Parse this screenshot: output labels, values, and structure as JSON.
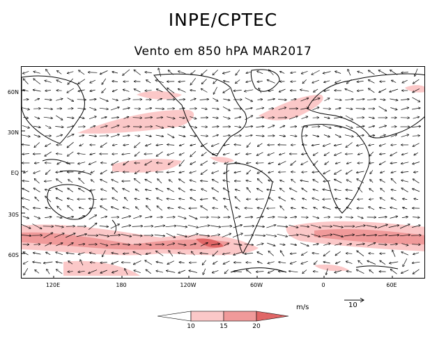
{
  "header": {
    "title": "INPE/CPTEC",
    "subtitle": "Vento em 850 hPA MAR2017"
  },
  "map": {
    "lat_labels": [
      "60N",
      "30N",
      "EQ",
      "30S",
      "60S"
    ],
    "lon_labels": [
      "120E",
      "180",
      "120W",
      "60W",
      "0",
      "60E"
    ],
    "land_color": "#000000",
    "vector_color": "#000000"
  },
  "legend": {
    "units": "m/s",
    "ref_vector_label": "10",
    "ticks": [
      "10",
      "15",
      "20"
    ],
    "colors": [
      "#ffffff",
      "#fbc8c8",
      "#f09a9a",
      "#e06666"
    ]
  }
}
